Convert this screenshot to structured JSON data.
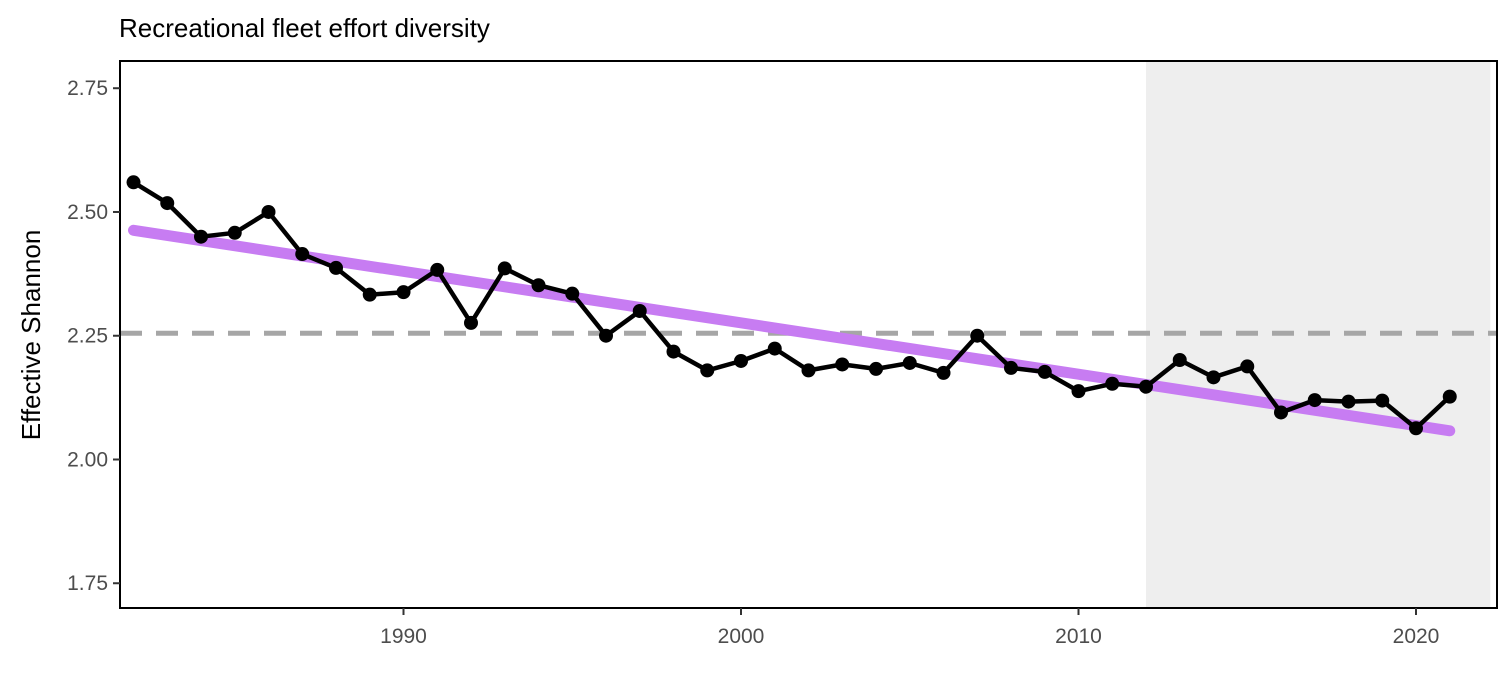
{
  "chart_data": {
    "type": "line",
    "title": "Recreational fleet effort diversity",
    "xlabel": "",
    "ylabel": "Effective Shannon",
    "xlim": [
      1981.6,
      2022.4
    ],
    "ylim": [
      1.7,
      2.805
    ],
    "x_ticks": [
      1990,
      2000,
      2010,
      2020
    ],
    "y_ticks": [
      1.75,
      2.0,
      2.25,
      2.5,
      2.75
    ],
    "y_tick_labels": [
      "1.75",
      "2.00",
      "2.25",
      "2.50",
      "2.75"
    ],
    "grid": false,
    "reference_line": {
      "y": 2.255,
      "style": "dashed",
      "color": "#a6a6a6"
    },
    "shaded_region": {
      "x_start": 2012,
      "x_end": 2022.2,
      "color": "#eeeeee"
    },
    "trend_line": {
      "x": [
        1982,
        2021
      ],
      "y": [
        2.463,
        2.058
      ],
      "color": "#c77cf2"
    },
    "series": [
      {
        "color": "#000000",
        "x": [
          1982,
          1983,
          1984,
          1985,
          1986,
          1987,
          1988,
          1989,
          1990,
          1991,
          1992,
          1993,
          1994,
          1995,
          1996,
          1997,
          1998,
          1999,
          2000,
          2001,
          2002,
          2003,
          2004,
          2005,
          2006,
          2007,
          2008,
          2009,
          2010,
          2011,
          2012,
          2013,
          2014,
          2015,
          2016,
          2017,
          2018,
          2019,
          2020,
          2021
        ],
        "y": [
          2.56,
          2.518,
          2.45,
          2.458,
          2.5,
          2.415,
          2.387,
          2.333,
          2.338,
          2.383,
          2.276,
          2.386,
          2.352,
          2.335,
          2.25,
          2.3,
          2.218,
          2.18,
          2.199,
          2.224,
          2.18,
          2.192,
          2.183,
          2.195,
          2.175,
          2.25,
          2.185,
          2.177,
          2.138,
          2.153,
          2.147,
          2.201,
          2.166,
          2.188,
          2.095,
          2.12,
          2.117,
          2.119,
          2.063,
          2.127
        ]
      }
    ]
  }
}
